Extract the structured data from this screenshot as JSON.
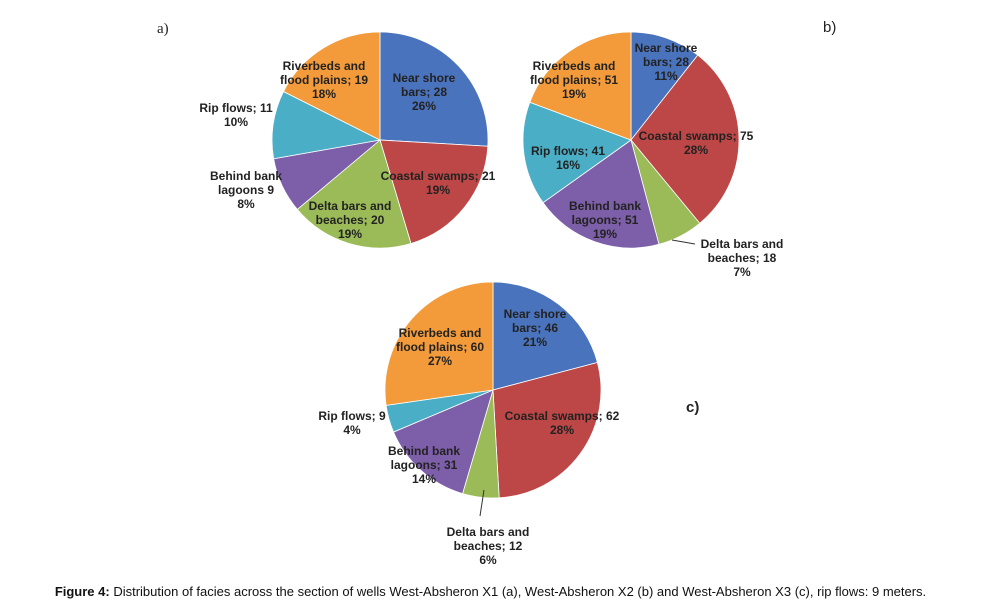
{
  "chart_data": [
    {
      "type": "pie",
      "panel": "a)",
      "title": "",
      "slices": [
        {
          "label": "Near shore bars",
          "value": 28,
          "percent": "26%",
          "color": "#4a73bd"
        },
        {
          "label": "Coastal swamps",
          "value": 21,
          "percent": "19%",
          "color": "#bd4646"
        },
        {
          "label": "Delta bars and beaches",
          "value": 20,
          "percent": "19%",
          "color": "#9bbb59"
        },
        {
          "label": "Behind bank lagoons",
          "value": 9,
          "percent": "8%",
          "color": "#7d5ea8"
        },
        {
          "label": "Rip flows",
          "value": 11,
          "percent": "10%",
          "color": "#4aaec6"
        },
        {
          "label": "Riverbeds and flood plains",
          "value": 19,
          "percent": "18%",
          "color": "#f39b3a"
        }
      ],
      "label_texts": [
        [
          "Near shore",
          "bars; 28",
          "26%"
        ],
        [
          "Coastal swamps; 21",
          "19%"
        ],
        [
          "Delta bars and",
          "beaches; 20",
          "19%"
        ],
        [
          "Behind bank",
          "lagoons 9",
          "8%"
        ],
        [
          "Rip flows; 11",
          "10%"
        ],
        [
          "Riverbeds and",
          "flood plains; 19",
          "18%"
        ]
      ]
    },
    {
      "type": "pie",
      "panel": "b)",
      "title": "",
      "slices": [
        {
          "label": "Near shore bars",
          "value": 28,
          "percent": "11%",
          "color": "#4a73bd"
        },
        {
          "label": "Coastal swamps",
          "value": 75,
          "percent": "28%",
          "color": "#bd4646"
        },
        {
          "label": "Delta bars and beaches",
          "value": 18,
          "percent": "7%",
          "color": "#9bbb59"
        },
        {
          "label": "Behind bank lagoons",
          "value": 51,
          "percent": "19%",
          "color": "#7d5ea8"
        },
        {
          "label": "Rip flows",
          "value": 41,
          "percent": "16%",
          "color": "#4aaec6"
        },
        {
          "label": "Riverbeds and flood plains",
          "value": 51,
          "percent": "19%",
          "color": "#f39b3a"
        }
      ],
      "label_texts": [
        [
          "Near shore",
          "bars; 28",
          "11%"
        ],
        [
          "Coastal swamps; 75",
          "28%"
        ],
        [
          "Delta bars and",
          "beaches; 18",
          "7%"
        ],
        [
          "Behind bank",
          "lagoons; 51",
          "19%"
        ],
        [
          "Rip flows; 41",
          "16%"
        ],
        [
          "Riverbeds and",
          "flood plains; 51",
          "19%"
        ]
      ]
    },
    {
      "type": "pie",
      "panel": "c)",
      "title": "",
      "slices": [
        {
          "label": "Near shore bars",
          "value": 46,
          "percent": "21%",
          "color": "#4a73bd"
        },
        {
          "label": "Coastal swamps",
          "value": 62,
          "percent": "28%",
          "color": "#bd4646"
        },
        {
          "label": "Delta bars and beaches",
          "value": 12,
          "percent": "6%",
          "color": "#9bbb59"
        },
        {
          "label": "Behind bank lagoons",
          "value": 31,
          "percent": "14%",
          "color": "#7d5ea8"
        },
        {
          "label": "Rip flows",
          "value": 9,
          "percent": "4%",
          "color": "#4aaec6"
        },
        {
          "label": "Riverbeds and flood plains",
          "value": 60,
          "percent": "27%",
          "color": "#f39b3a"
        }
      ],
      "label_texts": [
        [
          "Near shore",
          "bars; 46",
          "21%"
        ],
        [
          "Coastal swamps; 62",
          "28%"
        ],
        [
          "Delta bars and",
          "beaches; 12",
          "6%"
        ],
        [
          "Behind bank",
          "lagoons; 31",
          "14%"
        ],
        [
          "Rip flows; 9",
          "4%"
        ],
        [
          "Riverbeds and",
          "flood plains; 60",
          "27%"
        ]
      ]
    }
  ],
  "caption": {
    "prefix": "Figure 4:",
    "text": " Distribution of facies across the section of wells West-Absheron X1 (a), West-Absheron X2 (b) and West-Absheron X3 (c), rip flows: 9 meters."
  }
}
